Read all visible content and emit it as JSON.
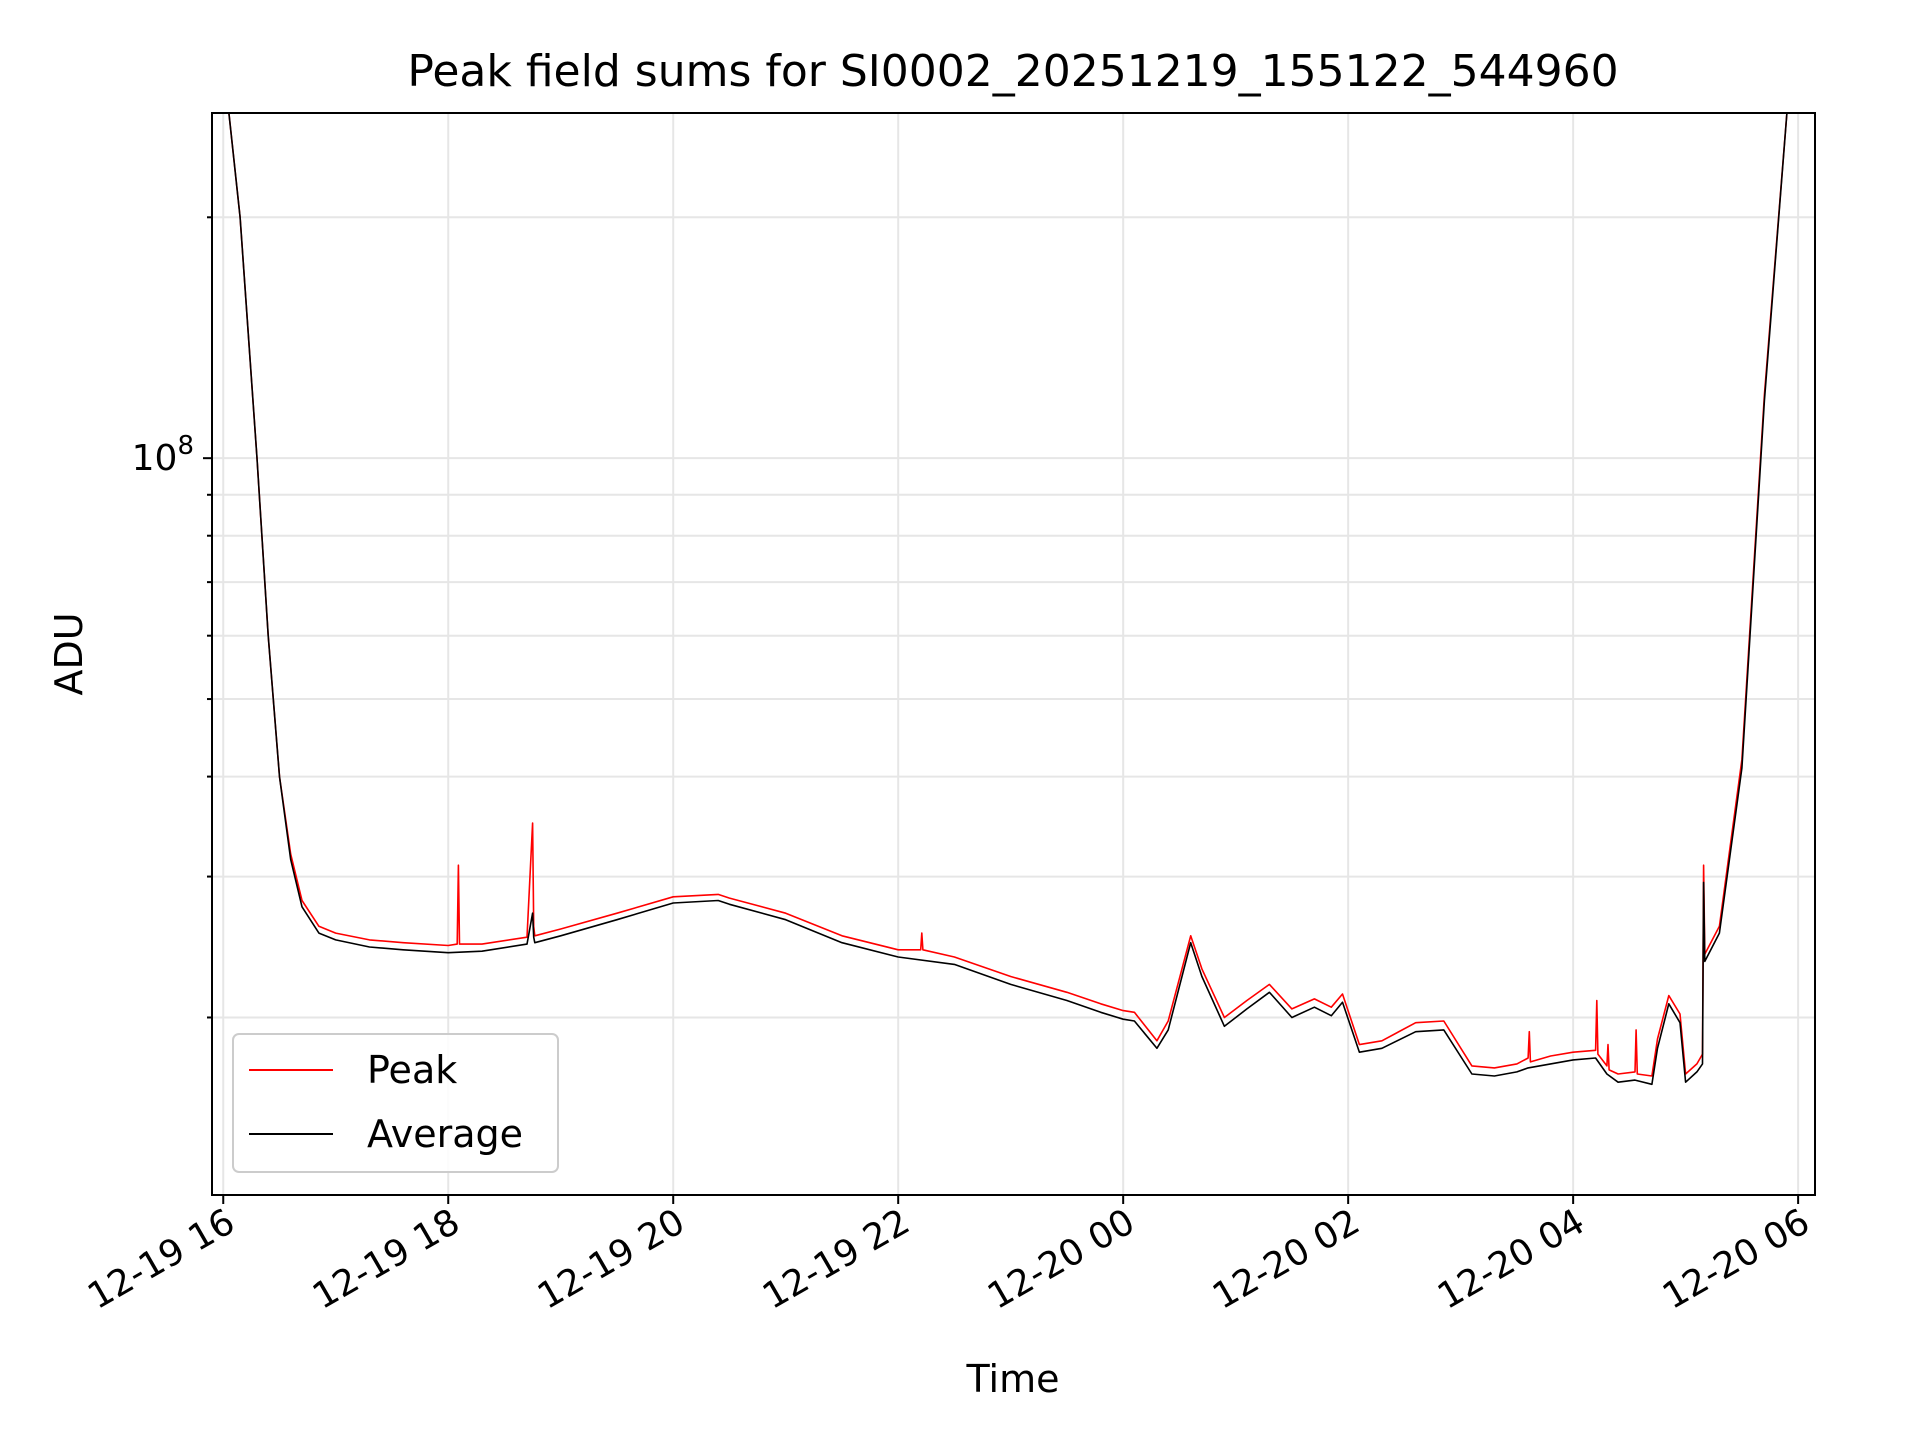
{
  "chart_data": {
    "type": "line",
    "title": "Peak field sums for SI0002_20251219_155122_544960",
    "xlabel": "Time",
    "ylabel": "ADU",
    "yscale": "log",
    "grid": true,
    "legend_position": "lower-left",
    "x_unit": "hours since 12-19 00:00",
    "xlim": [
      15.9,
      30.15
    ],
    "ylim": [
      12000000,
      270000000
    ],
    "x_ticks": [
      {
        "value": 16,
        "label": "12-19 16"
      },
      {
        "value": 18,
        "label": "12-19 18"
      },
      {
        "value": 20,
        "label": "12-19 20"
      },
      {
        "value": 22,
        "label": "12-19 22"
      },
      {
        "value": 24,
        "label": "12-20 00"
      },
      {
        "value": 26,
        "label": "12-20 02"
      },
      {
        "value": 28,
        "label": "12-20 04"
      },
      {
        "value": 30,
        "label": "12-20 06"
      }
    ],
    "y_major_ticks": [
      {
        "value": 100000000,
        "base": "10",
        "exponent": "8"
      }
    ],
    "y_minor_ticks": [
      20000000,
      30000000,
      40000000,
      50000000,
      60000000,
      70000000,
      80000000,
      90000000,
      200000000
    ],
    "series": [
      {
        "name": "Peak",
        "color": "#ff0000",
        "x": [
          16.05,
          16.15,
          16.3,
          16.4,
          16.5,
          16.6,
          16.7,
          16.85,
          17.0,
          17.3,
          17.6,
          18.0,
          18.08,
          18.09,
          18.1,
          18.3,
          18.7,
          18.75,
          18.76,
          18.77,
          19.0,
          19.5,
          20.0,
          20.4,
          20.5,
          21.0,
          21.5,
          22.0,
          22.2,
          22.21,
          22.22,
          22.5,
          23.0,
          23.5,
          23.8,
          24.0,
          24.1,
          24.3,
          24.4,
          24.6,
          24.7,
          24.9,
          25.1,
          25.3,
          25.5,
          25.7,
          25.85,
          25.95,
          26.1,
          26.3,
          26.6,
          26.85,
          27.1,
          27.3,
          27.5,
          27.6,
          27.61,
          27.62,
          27.8,
          28.0,
          28.2,
          28.21,
          28.22,
          28.3,
          28.31,
          28.32,
          28.4,
          28.55,
          28.56,
          28.57,
          28.7,
          28.75,
          28.85,
          28.95,
          29.0,
          29.1,
          29.15,
          29.16,
          29.17,
          29.3,
          29.5,
          29.7,
          29.9
        ],
        "values": [
          270000000,
          200000000,
          100000000,
          60000000,
          40000000,
          32000000,
          28000000,
          26000000,
          25500000,
          25000000,
          24800000,
          24600000,
          24700000,
          31000000,
          24700000,
          24700000,
          25200000,
          35000000,
          26000000,
          25300000,
          25800000,
          27000000,
          28300000,
          28500000,
          28200000,
          27000000,
          25300000,
          24300000,
          24300000,
          25500000,
          24300000,
          23800000,
          22500000,
          21500000,
          20800000,
          20400000,
          20300000,
          18700000,
          19800000,
          25300000,
          23000000,
          20000000,
          21000000,
          22000000,
          20500000,
          21100000,
          20600000,
          21400000,
          18500000,
          18700000,
          19700000,
          19800000,
          17400000,
          17300000,
          17500000,
          17800000,
          19200000,
          17600000,
          17900000,
          18100000,
          18200000,
          21000000,
          18000000,
          17400000,
          18500000,
          17200000,
          17000000,
          17100000,
          19300000,
          17000000,
          16900000,
          18800000,
          21300000,
          20200000,
          17000000,
          17500000,
          18000000,
          31000000,
          24000000,
          26000000,
          42000000,
          120000000,
          270000000
        ]
      },
      {
        "name": "Average",
        "color": "#000000",
        "x": [
          16.05,
          16.15,
          16.3,
          16.4,
          16.5,
          16.6,
          16.7,
          16.85,
          17.0,
          17.3,
          17.6,
          18.0,
          18.3,
          18.7,
          18.75,
          18.76,
          18.77,
          19.0,
          19.5,
          20.0,
          20.4,
          20.5,
          21.0,
          21.5,
          22.0,
          22.5,
          23.0,
          23.5,
          23.8,
          24.0,
          24.1,
          24.3,
          24.4,
          24.6,
          24.7,
          24.9,
          25.1,
          25.3,
          25.5,
          25.7,
          25.85,
          25.95,
          26.1,
          26.3,
          26.6,
          26.85,
          27.1,
          27.3,
          27.5,
          27.6,
          27.8,
          28.0,
          28.2,
          28.3,
          28.4,
          28.55,
          28.7,
          28.75,
          28.85,
          28.95,
          29.0,
          29.1,
          29.15,
          29.16,
          29.17,
          29.3,
          29.5,
          29.7,
          29.9
        ],
        "values": [
          270000000,
          200000000,
          100000000,
          60000000,
          40000000,
          31500000,
          27500000,
          25500000,
          25000000,
          24500000,
          24300000,
          24100000,
          24200000,
          24700000,
          27000000,
          25200000,
          24800000,
          25300000,
          26500000,
          27800000,
          28000000,
          27700000,
          26500000,
          24800000,
          23800000,
          23300000,
          22000000,
          21000000,
          20300000,
          19900000,
          19800000,
          18300000,
          19300000,
          24800000,
          22500000,
          19500000,
          20500000,
          21500000,
          20000000,
          20600000,
          20100000,
          20900000,
          18100000,
          18300000,
          19200000,
          19300000,
          17000000,
          16900000,
          17100000,
          17300000,
          17500000,
          17700000,
          17800000,
          17000000,
          16600000,
          16700000,
          16500000,
          18300000,
          20800000,
          19700000,
          16600000,
          17100000,
          17500000,
          29500000,
          23500000,
          25500000,
          41000000,
          118000000,
          270000000
        ]
      }
    ]
  }
}
